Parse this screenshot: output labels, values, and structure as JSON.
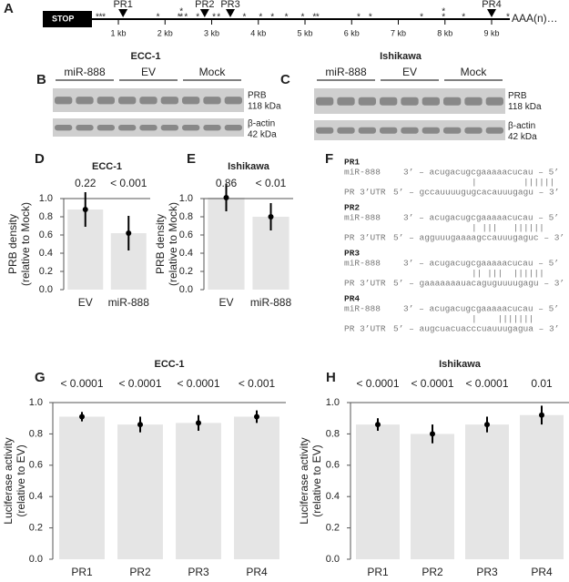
{
  "schematic": {
    "panel": "A",
    "stop": "STOP",
    "end_label": "AAA(n)…",
    "site_label": "*",
    "xlim": [
      -0.62,
      9.39
    ],
    "xticks": [
      {
        "value": 1,
        "label": "1 kb"
      },
      {
        "value": 2,
        "label": "2 kb"
      },
      {
        "value": 3,
        "label": "3 kb"
      },
      {
        "value": 4,
        "label": "4 kb"
      },
      {
        "value": 5,
        "label": "5 kb"
      },
      {
        "value": 6,
        "label": "6 kb"
      },
      {
        "value": 7,
        "label": "7 kb"
      },
      {
        "value": 8,
        "label": "8 kb"
      },
      {
        "value": 9,
        "label": "9 kb"
      }
    ],
    "sites": [
      0.55,
      0.62,
      0.69,
      1.85,
      2.3,
      2.35,
      2.45,
      2.35,
      2.7,
      3.05,
      3.15,
      3.7,
      4.05,
      4.3,
      4.6,
      4.95,
      5.2,
      5.27,
      6.15,
      6.4,
      7.5,
      7.97,
      7.97,
      8.4,
      9.35
    ],
    "pr_sites": [
      {
        "label": "PR1",
        "value": 1.1
      },
      {
        "label": "PR2",
        "value": 2.85
      },
      {
        "label": "PR3",
        "value": 3.4
      },
      {
        "label": "PR4",
        "value": 9.0
      }
    ]
  },
  "blots": [
    {
      "panel": "B",
      "title": "ECC-1",
      "groups": [
        "miR-888",
        "EV",
        "Mock"
      ],
      "bands": [
        {
          "name": "PRB",
          "size": "118 kDa"
        },
        {
          "name": "β-actin",
          "size": "42 kDa"
        }
      ]
    },
    {
      "panel": "C",
      "title": "Ishikawa",
      "groups": [
        "miR-888",
        "EV",
        "Mock"
      ],
      "bands": [
        {
          "name": "PRB",
          "size": "118 kDa"
        },
        {
          "name": "β-actin",
          "size": "42 kDa"
        }
      ]
    }
  ],
  "alignment": {
    "panel": "F",
    "sites": [
      {
        "label": "PR1",
        "mir_name": "miR-888",
        "mir_seq": "3’ – acugacugcgaaaaacucau – 5’",
        "pairing": "|         ||||||",
        "utr_name": "PR 3’UTR",
        "utr_seq": "5’ – gccauuuugugcacauuugagu – 3’"
      },
      {
        "label": "PR2",
        "mir_name": "miR-888",
        "mir_seq": "3’ – acugacugcgaaaaacucau – 5’",
        "pairing": "| |||   ||||||",
        "utr_name": "PR 3’UTR",
        "utr_seq": "5’ – agguuugaaaagccauuugaguc – 3’"
      },
      {
        "label": "PR3",
        "mir_name": "miR-888",
        "mir_seq": "3’ – acugacugcgaaaaacucau – 5’",
        "pairing": "|| |||  ||||||",
        "utr_name": "PR 3’UTR",
        "utr_seq": "5’ – gaaaaaaauacaguguuuugagu – 3’"
      },
      {
        "label": "PR4",
        "mir_name": "miR-888",
        "mir_seq": "3’ – acugacugcgaaaaacucau – 5’",
        "pairing": "|    |||||||",
        "utr_name": "PR 3’UTR",
        "utr_seq": "5’ – augcuacuacccuauuugagua – 3’"
      }
    ]
  },
  "chart_data": [
    {
      "type": "bar",
      "panel": "D",
      "title": "ECC-1",
      "ylabel": [
        "PRB density",
        "(relative to Mock)"
      ],
      "categories": [
        "EV",
        "miR-888"
      ],
      "values": [
        0.88,
        0.62
      ],
      "errors": [
        0.19,
        0.19
      ],
      "annotations": [
        "0.22",
        "< 0.001"
      ],
      "color": "#e5e5e5",
      "ylim": [
        0,
        1.0
      ],
      "yticks": [
        {
          "value": 0,
          "label": "0.0"
        },
        {
          "value": 0.2,
          "label": "0.2"
        },
        {
          "value": 0.4,
          "label": "0.4"
        },
        {
          "value": 0.6,
          "label": "0.6"
        },
        {
          "value": 0.8,
          "label": "0.8"
        },
        {
          "value": 1.0,
          "label": "1.0"
        }
      ]
    },
    {
      "type": "bar",
      "panel": "E",
      "title": "Ishikawa",
      "ylabel": [
        "PRB density",
        "(relative to Mock)"
      ],
      "categories": [
        "EV",
        "miR-888"
      ],
      "values": [
        1.01,
        0.8
      ],
      "errors": [
        0.15,
        0.15
      ],
      "annotations": [
        "0.86",
        "< 0.01"
      ],
      "color": "#e5e5e5",
      "ylim": [
        0,
        1.0
      ],
      "yticks": [
        {
          "value": 0,
          "label": "0.0"
        },
        {
          "value": 0.2,
          "label": "0.2"
        },
        {
          "value": 0.4,
          "label": "0.4"
        },
        {
          "value": 0.6,
          "label": "0.6"
        },
        {
          "value": 0.8,
          "label": "0.8"
        },
        {
          "value": 1.0,
          "label": "1.0"
        }
      ]
    },
    {
      "type": "bar",
      "panel": "G",
      "title": "ECC-1",
      "ylabel": [
        "Luciferase activity",
        "(relative to EV)"
      ],
      "categories": [
        "PR1",
        "PR2",
        "PR3",
        "PR4"
      ],
      "values": [
        0.91,
        0.86,
        0.87,
        0.91
      ],
      "errors": [
        0.03,
        0.05,
        0.05,
        0.04
      ],
      "annotations": [
        "< 0.0001",
        "< 0.0001",
        "< 0.0001",
        "< 0.001"
      ],
      "color": "#e5e5e5",
      "ylim": [
        0,
        1.0
      ],
      "yticks": [
        {
          "value": 0,
          "label": "0.0"
        },
        {
          "value": 0.2,
          "label": "0.2"
        },
        {
          "value": 0.4,
          "label": "0.4"
        },
        {
          "value": 0.6,
          "label": "0.6"
        },
        {
          "value": 0.8,
          "label": "0.8"
        },
        {
          "value": 1.0,
          "label": "1.0"
        }
      ]
    },
    {
      "type": "bar",
      "panel": "H",
      "title": "Ishikawa",
      "ylabel": [
        "Luciferase activity",
        "(relative to EV)"
      ],
      "categories": [
        "PR1",
        "PR2",
        "PR3",
        "PR4"
      ],
      "values": [
        0.86,
        0.8,
        0.86,
        0.92
      ],
      "errors": [
        0.04,
        0.06,
        0.05,
        0.06
      ],
      "annotations": [
        "< 0.0001",
        "< 0.0001",
        "< 0.0001",
        "0.01"
      ],
      "color": "#e5e5e5",
      "ylim": [
        0,
        1.0
      ],
      "yticks": [
        {
          "value": 0,
          "label": "0.0"
        },
        {
          "value": 0.2,
          "label": "0.2"
        },
        {
          "value": 0.4,
          "label": "0.4"
        },
        {
          "value": 0.6,
          "label": "0.6"
        },
        {
          "value": 0.8,
          "label": "0.8"
        },
        {
          "value": 1.0,
          "label": "1.0"
        }
      ]
    }
  ]
}
